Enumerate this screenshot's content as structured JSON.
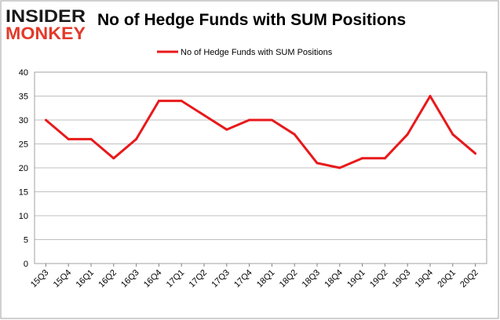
{
  "logo": {
    "line1": "INSIDER",
    "line2": "MONKEY"
  },
  "colors": {
    "series": "#e8191b",
    "logo_dark": "#1a1a1a",
    "logo_red": "#e23a2a",
    "grid": "#bfbfbf"
  },
  "chart_data": {
    "type": "line",
    "title": "No of Hedge Funds with SUM Positions",
    "legend_position": "top-center",
    "grid": true,
    "ylim": [
      0,
      40
    ],
    "yticks": [
      0,
      5,
      10,
      15,
      20,
      25,
      30,
      35,
      40
    ],
    "categories": [
      "15Q3",
      "15Q4",
      "16Q1",
      "16Q2",
      "16Q3",
      "16Q4",
      "17Q1",
      "17Q2",
      "17Q3",
      "17Q4",
      "18Q1",
      "18Q2",
      "18Q3",
      "18Q4",
      "19Q1",
      "19Q2",
      "19Q3",
      "19Q4",
      "20Q1",
      "20Q2"
    ],
    "series": [
      {
        "name": "No of Hedge Funds with SUM Positions",
        "values": [
          30,
          26,
          26,
          22,
          26,
          34,
          34,
          31,
          28,
          30,
          30,
          27,
          21,
          20,
          22,
          22,
          27,
          35,
          27,
          23
        ]
      }
    ]
  }
}
